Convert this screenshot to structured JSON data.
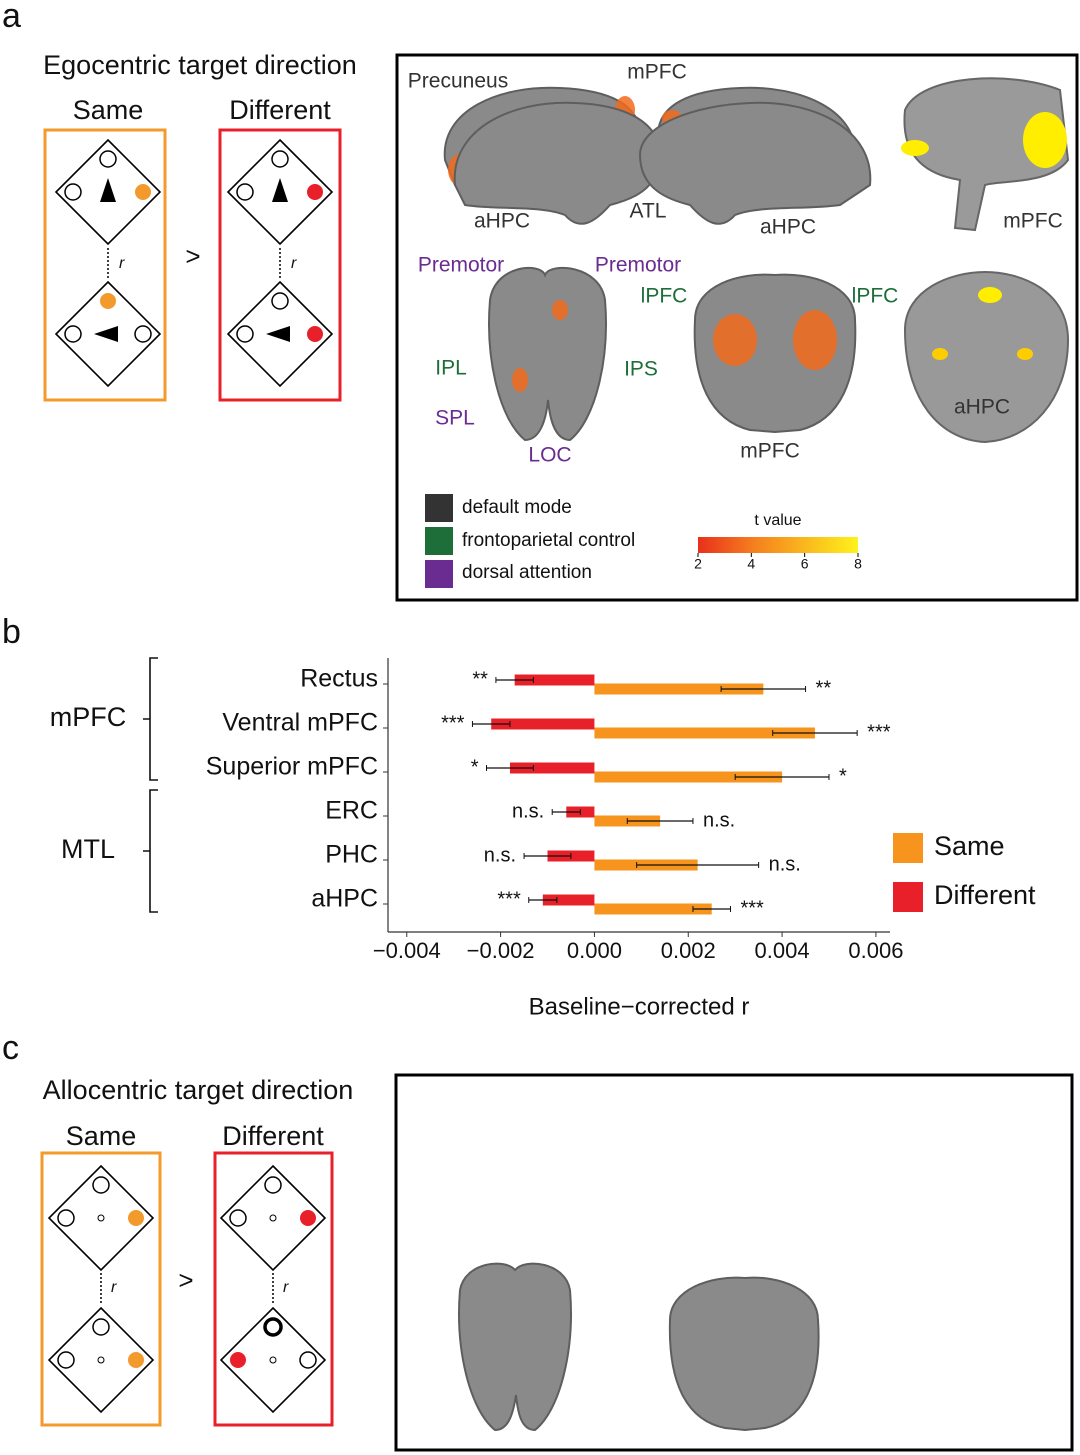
{
  "panel_labels": [
    "a",
    "b",
    "c"
  ],
  "panel_a": {
    "title": "Egocentric target direction",
    "same": "Same",
    "different": "Different",
    "gt": ">",
    "r": "r",
    "brain_labels": [
      "Precuneus",
      "mPFC",
      "aHPC",
      "ATL",
      "aHPC",
      "mPFC",
      "Premotor",
      "Premotor",
      "IPL",
      "IPS",
      "SPL",
      "LOC",
      "lPFC",
      "lPFC",
      "mPFC",
      "aHPC"
    ],
    "legend": [
      "default mode",
      "frontoparietal control",
      "dorsal attention"
    ],
    "colorbar": {
      "title": "t value",
      "ticks": [
        2,
        4,
        6,
        8
      ]
    }
  },
  "chart_data": {
    "type": "bar",
    "orientation": "horizontal",
    "categories": [
      "Rectus",
      "Ventral mPFC",
      "Superior mPFC",
      "ERC",
      "PHC",
      "aHPC"
    ],
    "groups": [
      {
        "label": "mPFC",
        "members": [
          "Rectus",
          "Ventral mPFC",
          "Superior mPFC"
        ]
      },
      {
        "label": "MTL",
        "members": [
          "ERC",
          "PHC",
          "aHPC"
        ]
      }
    ],
    "series": [
      {
        "name": "Same",
        "color": "#f7941d",
        "values": [
          0.0036,
          0.0047,
          0.004,
          0.0014,
          0.0022,
          0.0025
        ],
        "errors": [
          0.0009,
          0.0009,
          0.001,
          0.0007,
          0.0013,
          0.0004
        ],
        "annotations": [
          "**",
          "***",
          "*",
          "n.s.",
          "n.s.",
          "***"
        ]
      },
      {
        "name": "Different",
        "color": "#e8202a",
        "values": [
          -0.0017,
          -0.0022,
          -0.0018,
          -0.0006,
          -0.001,
          -0.0011
        ],
        "errors": [
          0.0004,
          0.0004,
          0.0005,
          0.0003,
          0.0005,
          0.0003
        ],
        "annotations": [
          "**",
          "***",
          "*",
          "n.s.",
          "n.s.",
          "***"
        ]
      }
    ],
    "xlabel": "Baseline−corrected r",
    "xlim": [
      -0.0044,
      0.0063
    ],
    "xticks": [
      {
        "value": -0.004,
        "label": "−0.004"
      },
      {
        "value": -0.002,
        "label": "−0.002"
      },
      {
        "value": 0,
        "label": "0.000"
      },
      {
        "value": 0.002,
        "label": "0.002"
      },
      {
        "value": 0.004,
        "label": "0.004"
      },
      {
        "value": 0.006,
        "label": "0.006"
      }
    ],
    "legend": "right"
  },
  "panel_c": {
    "title": "Allocentric target direction",
    "same": "Same",
    "different": "Different",
    "gt": ">",
    "r": "r"
  }
}
